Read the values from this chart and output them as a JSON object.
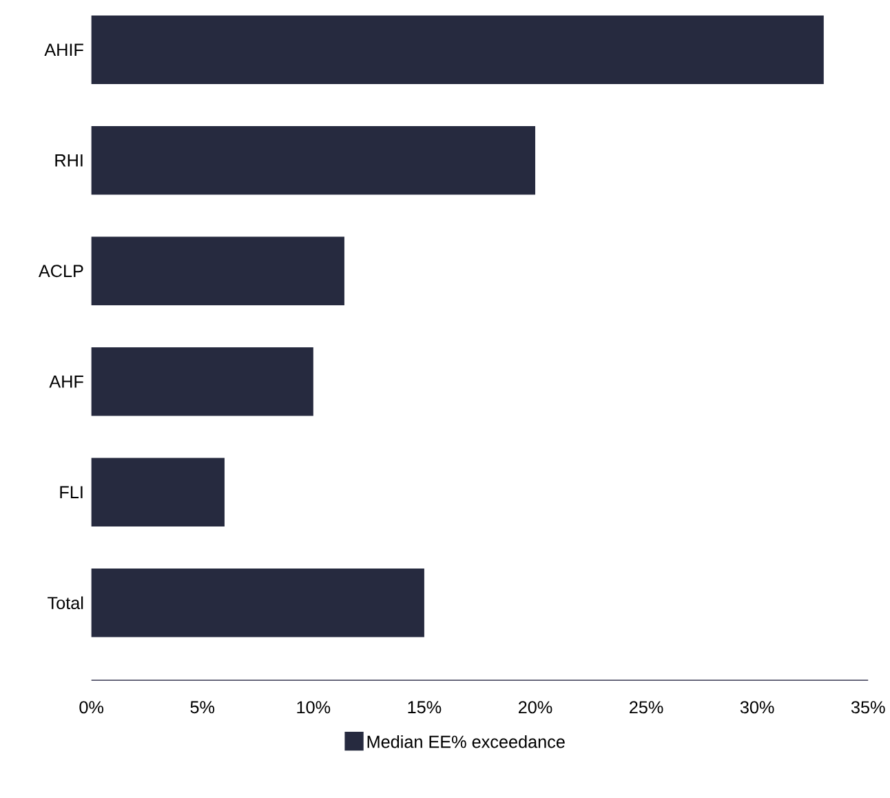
{
  "chart_data": {
    "type": "bar",
    "orientation": "horizontal",
    "categories": [
      "AHIF",
      "RHI",
      "ACLP",
      "AHF",
      "FLI",
      "Total"
    ],
    "series": [
      {
        "name": "Median EE% exceedance",
        "color": "#262a3f",
        "values": [
          33,
          20,
          11.4,
          10,
          6,
          15
        ]
      }
    ],
    "xlim": [
      0,
      35
    ],
    "xticks": [
      {
        "value": 0,
        "label": "0%"
      },
      {
        "value": 5,
        "label": "5%"
      },
      {
        "value": 10,
        "label": "10%"
      },
      {
        "value": 15,
        "label": "15%"
      },
      {
        "value": 20,
        "label": "20%"
      },
      {
        "value": 25,
        "label": "25%"
      },
      {
        "value": 30,
        "label": "30%"
      },
      {
        "value": 35,
        "label": "35%"
      }
    ],
    "legend": "bottom"
  }
}
